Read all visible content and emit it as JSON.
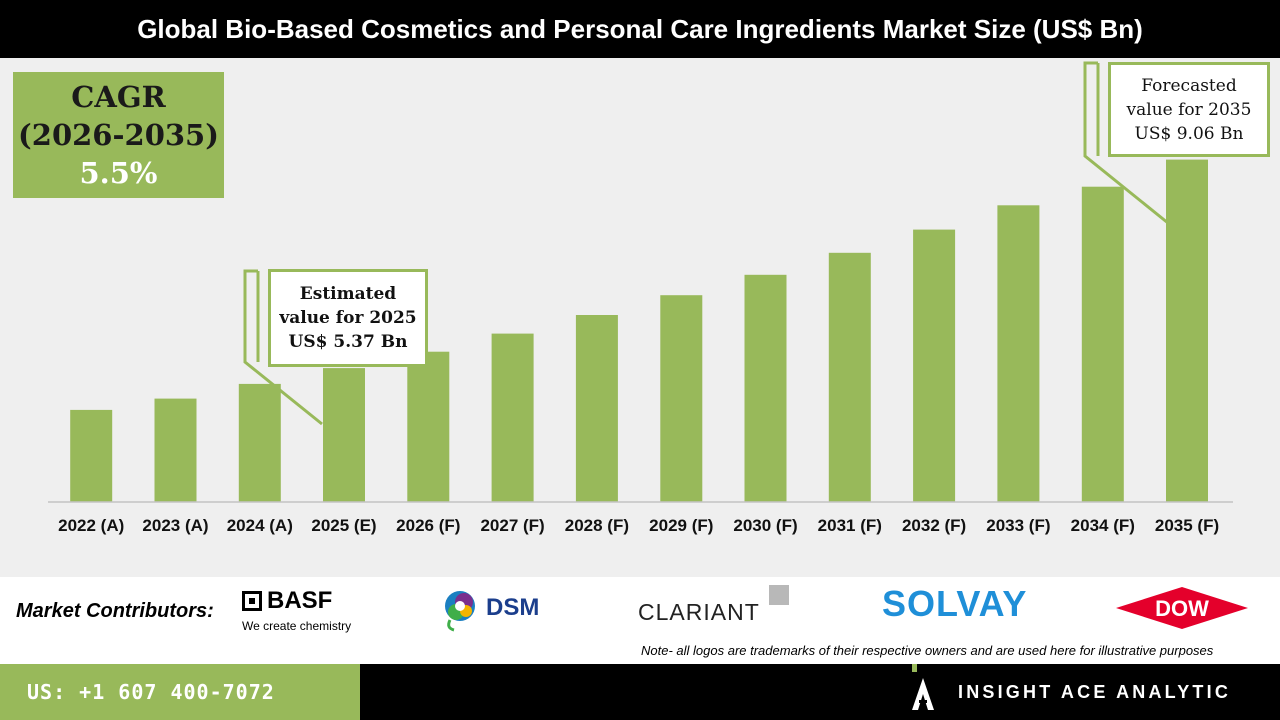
{
  "title": "Global Bio-Based Cosmetics and Personal Care Ingredients Market Size (US$ Bn)",
  "cagr": {
    "line1": "CAGR",
    "line2": "(2026-2035)",
    "value": "5.5%"
  },
  "callouts": {
    "estimated": {
      "line1": "Estimated",
      "line2": "value for 2025",
      "line3": "US$ 5.37 Bn"
    },
    "forecasted": {
      "line1": "Forecasted",
      "line2": "value for 2035",
      "line3": "US$ 9.06 Bn"
    }
  },
  "chart_data": {
    "type": "bar",
    "title": "Global Bio-Based Cosmetics and Personal Care Ingredients Market Size (US$ Bn)",
    "categories": [
      "2022 (A)",
      "2023 (A)",
      "2024 (A)",
      "2025 (E)",
      "2026 (F)",
      "2027 (F)",
      "2028 (F)",
      "2029 (F)",
      "2030 (F)",
      "2031 (F)",
      "2032 (F)",
      "2033 (F)",
      "2034 (F)",
      "2035 (F)"
    ],
    "values": [
      4.63,
      4.83,
      5.09,
      5.37,
      5.66,
      5.98,
      6.31,
      6.66,
      7.02,
      7.41,
      7.82,
      8.25,
      8.58,
      9.06
    ],
    "xlabel": "",
    "ylabel": "",
    "ylim": [
      3.0,
      9.3
    ],
    "grid": false,
    "bar_color": "#98b95a"
  },
  "contributors": {
    "label": "Market Contributors:",
    "basf": {
      "name": "BASF",
      "tagline": "We create chemistry"
    },
    "dsm": {
      "name": "DSM"
    },
    "clariant": {
      "name": "CLARIANT"
    },
    "solvay": {
      "name": "SOLVAY"
    },
    "dow": {
      "name": "DOW"
    },
    "note": "Note- all logos are trademarks of their respective owners and are used here for illustrative purposes"
  },
  "footer": {
    "phone": "US: +1 607 400-7072",
    "brand": "INSIGHT ACE ANALYTIC"
  },
  "colors": {
    "accent": "#98b95a",
    "header_bg": "#000000",
    "chart_bg": "#efefef"
  }
}
